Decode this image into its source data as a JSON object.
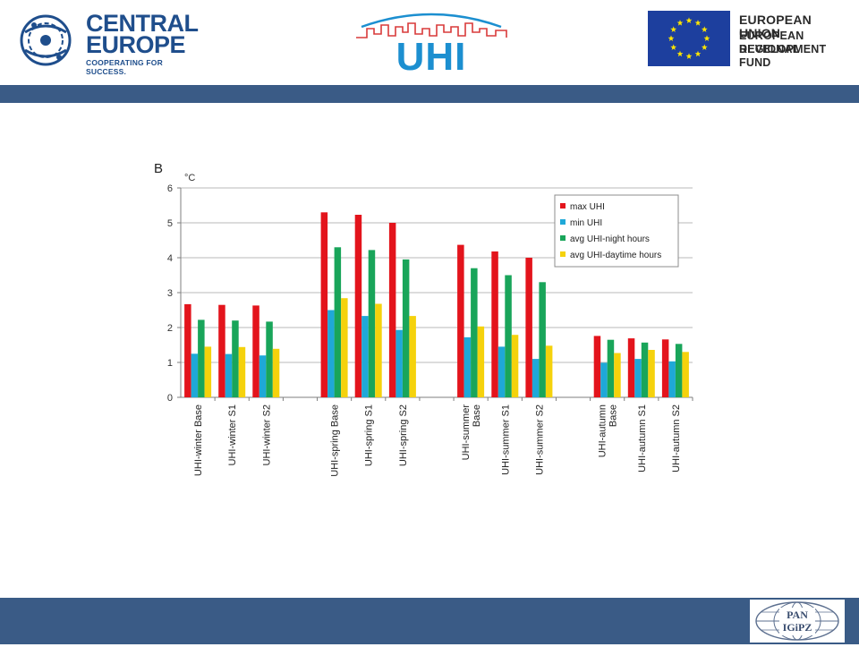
{
  "header": {
    "ce_line1": "CENTRAL",
    "ce_line2": "EUROPE",
    "ce_tagline": "COOPERATING FOR SUCCESS.",
    "uhi_text": "UHI",
    "eu_line1": "EUROPEAN UNION",
    "eu_line2": "EUROPEAN REGIONAL",
    "eu_line3": "DEVELOPMENT FUND"
  },
  "footer": {
    "pan_line1": "PAN",
    "pan_line2": "IGiPZ"
  },
  "colors": {
    "band": "#3a5b86",
    "series": [
      "#e3141c",
      "#1fa8d8",
      "#19a55a",
      "#f5d20c"
    ]
  },
  "chart_data": {
    "type": "bar",
    "panel_label": "B",
    "unit_label": "°C",
    "ylim": [
      0,
      6
    ],
    "yticks": [
      0,
      1,
      2,
      3,
      4,
      5,
      6
    ],
    "grid": true,
    "legend_position": "top-right",
    "groups": [
      {
        "categories": [
          [
            "UHI-winter Base"
          ],
          [
            "UHI-winter S1"
          ],
          [
            "UHI-winter S2"
          ]
        ]
      },
      {
        "categories": [
          [
            "UHI-spring Base"
          ],
          [
            "UHI-spring S1"
          ],
          [
            "UHI-spring S2"
          ]
        ]
      },
      {
        "categories": [
          [
            "UHI-summer",
            "Base"
          ],
          [
            "UHI-summer S1"
          ],
          [
            "UHI-summer S2"
          ]
        ]
      },
      {
        "categories": [
          [
            "UHI-autumn",
            "Base"
          ],
          [
            "UHI-autumn S1"
          ],
          [
            "UHI-autumn S2"
          ]
        ]
      }
    ],
    "series": [
      {
        "name": "max UHI",
        "values": [
          2.67,
          2.65,
          2.63,
          5.3,
          5.23,
          5.0,
          4.37,
          4.18,
          4.0,
          1.76,
          1.69,
          1.66
        ]
      },
      {
        "name": "min UHI",
        "values": [
          1.25,
          1.24,
          1.2,
          2.5,
          2.33,
          1.93,
          1.72,
          1.45,
          1.1,
          0.99,
          1.1,
          1.03
        ]
      },
      {
        "name": "avg UHI-night hours",
        "values": [
          2.22,
          2.2,
          2.17,
          4.3,
          4.22,
          3.95,
          3.7,
          3.5,
          3.3,
          1.65,
          1.57,
          1.53
        ]
      },
      {
        "name": "avg UHI-daytime hours",
        "values": [
          1.45,
          1.44,
          1.39,
          2.84,
          2.68,
          2.33,
          2.03,
          1.79,
          1.48,
          1.27,
          1.36,
          1.3
        ]
      }
    ]
  }
}
